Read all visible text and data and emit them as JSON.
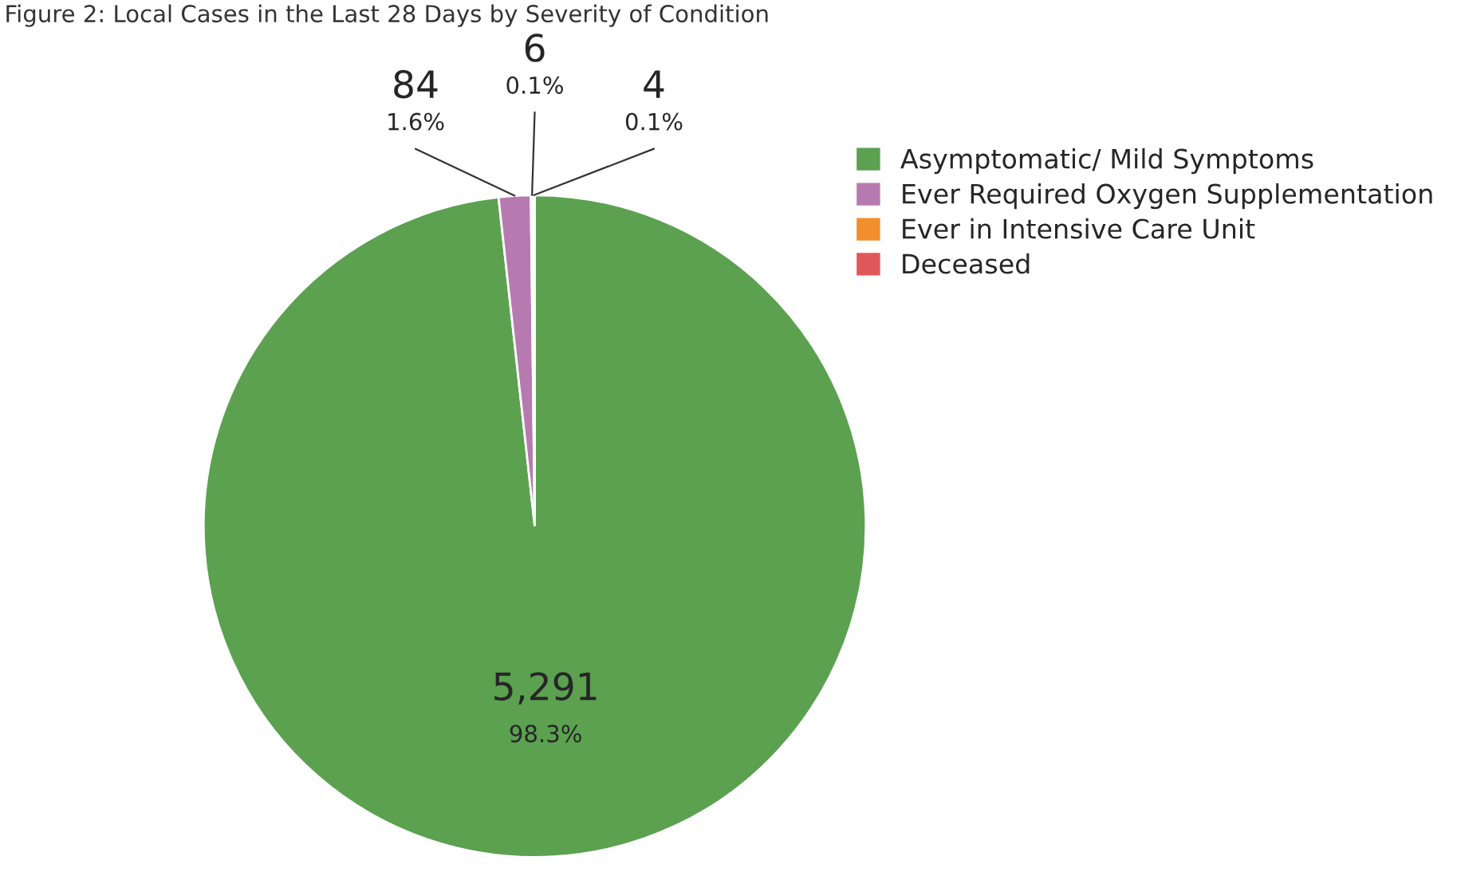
{
  "chart_data": {
    "type": "pie",
    "title": "Figure 2: Local Cases in the Last 28 Days by Severity of Condition",
    "categories": [
      "Asymptomatic/ Mild Symptoms",
      "Ever Required Oxygen Supplementation",
      "Ever in Intensive Care Unit",
      "Deceased"
    ],
    "values": [
      5291,
      84,
      6,
      4
    ],
    "colors": [
      "#5ba150",
      "#b77ab0",
      "#f28e2b",
      "#e15759"
    ],
    "value_labels": [
      "5,291\n98.3%",
      "84\n1.6%",
      "6\n0.1%",
      "4\n0.1%"
    ],
    "legend": "top right"
  }
}
